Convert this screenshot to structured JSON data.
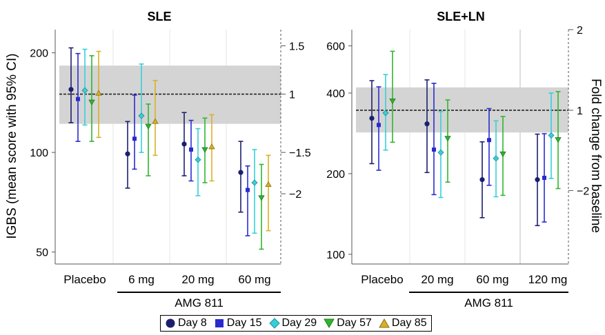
{
  "colors": {
    "Day 8": "#1b1f6e",
    "Day 15": "#2a2ad0",
    "Day 29": "#36cfd8",
    "Day 57": "#2fb52f",
    "Day 85": "#d9b025",
    "band": "#d4d4d4"
  },
  "legend": [
    {
      "label": "Day 8",
      "marker": "circle"
    },
    {
      "label": "Day 15",
      "marker": "square"
    },
    {
      "label": "Day 29",
      "marker": "diamond"
    },
    {
      "label": "Day 57",
      "marker": "triangle-down"
    },
    {
      "label": "Day 85",
      "marker": "triangle-up"
    }
  ],
  "chart_data": [
    {
      "type": "scatter",
      "title": "SLE",
      "ylabel": "IGBS (mean score with 95% CI)",
      "y2label": "",
      "yscale": "log",
      "ylim": [
        46,
        235
      ],
      "yticks": [
        50,
        100,
        200
      ],
      "y2ticks": [
        "1.5",
        "1",
        "−1.5",
        "−2"
      ],
      "y2tick_positions": [
        210,
        150,
        100,
        75
      ],
      "categories": [
        "Placebo",
        "6 mg",
        "20 mg",
        "60 mg"
      ],
      "group_label": "AMG 811",
      "group_categories": [
        "6 mg",
        "20 mg",
        "60 mg"
      ],
      "baseline": 150,
      "band": [
        122,
        183
      ],
      "series": [
        {
          "name": "Day 8",
          "marker": "circle",
          "values": [
            155,
            99,
            106,
            87
          ],
          "lower": [
            123,
            78,
            85,
            66
          ],
          "upper": [
            207,
            124,
            132,
            108
          ]
        },
        {
          "name": "Day 15",
          "marker": "square",
          "values": [
            145,
            110,
            102,
            77
          ],
          "lower": [
            108,
            89,
            82,
            56
          ],
          "upper": [
            199,
            149,
            125,
            91
          ]
        },
        {
          "name": "Day 29",
          "marker": "diamond",
          "values": [
            154,
            129,
            95,
            81
          ],
          "lower": [
            121,
            100,
            74,
            57
          ],
          "upper": [
            205,
            185,
            118,
            102
          ]
        },
        {
          "name": "Day 57",
          "marker": "triangle-down",
          "values": [
            142,
            120,
            102,
            73
          ],
          "lower": [
            108,
            85,
            81,
            51
          ],
          "upper": [
            196,
            140,
            127,
            92
          ]
        },
        {
          "name": "Day 85",
          "marker": "triangle-up",
          "values": [
            151,
            124,
            104,
            80
          ],
          "lower": [
            111,
            98,
            82,
            58
          ],
          "upper": [
            202,
            165,
            130,
            98
          ]
        }
      ]
    },
    {
      "type": "scatter",
      "title": "SLE+LN",
      "ylabel": "",
      "y2label": "Fold change from baseline",
      "yscale": "log",
      "ylim": [
        92,
        690
      ],
      "yticks": [
        100,
        200,
        400,
        600
      ],
      "y2ticks": [
        "2",
        "1",
        "−2"
      ],
      "y2tick_positions": [
        690,
        345,
        173
      ],
      "categories": [
        "Placebo",
        "20 mg",
        "60 mg",
        "120 mg"
      ],
      "group_label": "AMG 811",
      "group_categories": [
        "20 mg",
        "60 mg",
        "120 mg"
      ],
      "baseline": 345,
      "band": [
        285,
        420
      ],
      "series": [
        {
          "name": "Day 8",
          "marker": "circle",
          "values": [
            322,
            307,
            190,
            190
          ],
          "lower": [
            218,
            202,
            137,
            128
          ],
          "upper": [
            445,
            448,
            263,
            281
          ]
        },
        {
          "name": "Day 15",
          "marker": "square",
          "values": [
            304,
            246,
            267,
            193
          ],
          "lower": [
            206,
            167,
            181,
            132
          ],
          "upper": [
            422,
            435,
            350,
            282
          ]
        },
        {
          "name": "Day 29",
          "marker": "diamond",
          "values": [
            337,
            240,
            228,
            278
          ],
          "lower": [
            245,
            163,
            164,
            192
          ],
          "upper": [
            469,
            341,
            315,
            400
          ]
        },
        {
          "name": "Day 57",
          "marker": "triangle-down",
          "values": [
            374,
            271,
            237,
            268
          ],
          "lower": [
            262,
            186,
            166,
            176
          ],
          "upper": [
            573,
            377,
            327,
            405
          ]
        },
        {
          "name": "Day 85",
          "marker": "triangle-up",
          "values": [],
          "lower": [],
          "upper": []
        }
      ]
    }
  ]
}
